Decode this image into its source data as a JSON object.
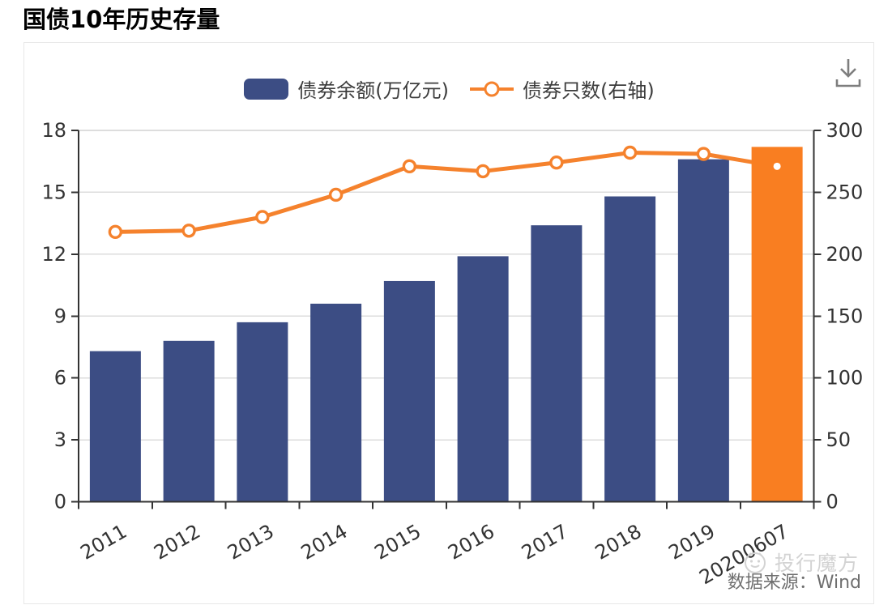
{
  "page_title": "国债10年历史存量",
  "legend": {
    "items": [
      {
        "label": "债券余额(万亿元)",
        "series": "bar"
      },
      {
        "label": "债券只数(右轴)",
        "series": "line"
      }
    ]
  },
  "toolbar": {
    "download_icon": "download-icon"
  },
  "watermark": {
    "logo_icon": "mascot-face-icon",
    "text": "投行魔方"
  },
  "source_note": "数据来源：Wind",
  "colors": {
    "bar": "#3C4D84",
    "bar_highlight": "#F97E21",
    "line": "#F5822D",
    "marker_fill": "#FFFFFF",
    "grid": "#DDDDDD",
    "axis_line": "#333333",
    "tick_text": "#333333",
    "card_border": "#E8E8E8",
    "icon_gray": "#7E7E7E",
    "watermark_text": "#D3D3D3",
    "source_text": "#6F6F6F"
  },
  "chart_data": {
    "type": "bar+line combo",
    "title": "国债10年历史存量",
    "categories": [
      "2011",
      "2012",
      "2013",
      "2014",
      "2015",
      "2016",
      "2017",
      "2018",
      "2019",
      "20200607"
    ],
    "series": [
      {
        "name": "债券余额(万亿元)",
        "type": "bar",
        "axis": "left",
        "values": [
          7.3,
          7.8,
          8.7,
          9.6,
          10.7,
          11.9,
          13.4,
          14.8,
          16.6,
          17.2
        ],
        "highlight_last": true
      },
      {
        "name": "债券只数(右轴)",
        "type": "line",
        "axis": "right",
        "values": [
          218,
          219,
          230,
          248,
          271,
          267,
          274,
          282,
          281,
          271
        ],
        "last_point_style": "small-white-dot"
      }
    ],
    "left_axis": {
      "min": 0,
      "max": 18,
      "ticks": [
        0,
        3,
        6,
        9,
        12,
        15,
        18
      ]
    },
    "right_axis": {
      "min": 0,
      "max": 300,
      "ticks": [
        0,
        50,
        100,
        150,
        200,
        250,
        300
      ]
    },
    "grid": true,
    "legend_position": "top",
    "x_label_rotation_deg": -30
  }
}
